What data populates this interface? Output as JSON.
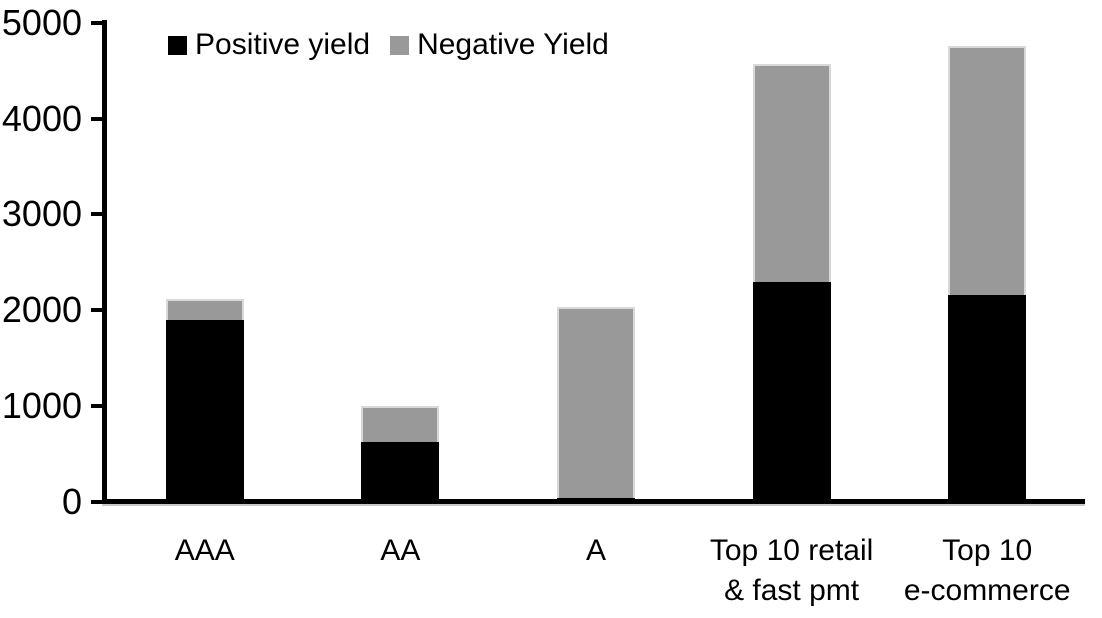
{
  "chart_data": {
    "type": "bar",
    "stacked": true,
    "title": "",
    "xlabel": "",
    "ylabel": "",
    "categories": [
      [
        "AAA"
      ],
      [
        "AA"
      ],
      [
        "A"
      ],
      [
        "Top 10 retail",
        "& fast pmt"
      ],
      [
        "Top 10",
        "e-commerce"
      ]
    ],
    "series": [
      {
        "name": "Positive yield",
        "color": "#000000",
        "values": [
          1900,
          620,
          40,
          2290,
          2160
        ]
      },
      {
        "name": "Negative Yield",
        "color": "#999999",
        "values": [
          220,
          380,
          1990,
          2280,
          2600
        ]
      }
    ],
    "totals": [
      2120,
      1000,
      2030,
      4570,
      4760
    ],
    "ylim": [
      0,
      5000
    ],
    "yticks": [
      0,
      1000,
      2000,
      3000,
      4000,
      5000
    ],
    "grid": false,
    "legend_position": "top-inside"
  },
  "colors": {
    "background": "#ffffff",
    "axis": "#000000",
    "negative_segment_border": "#d9d9d9"
  }
}
